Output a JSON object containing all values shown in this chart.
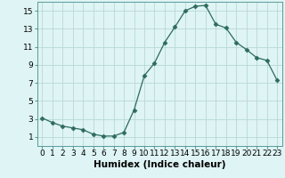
{
  "x": [
    0,
    1,
    2,
    3,
    4,
    5,
    6,
    7,
    8,
    9,
    10,
    11,
    12,
    13,
    14,
    15,
    16,
    17,
    18,
    19,
    20,
    21,
    22,
    23
  ],
  "y": [
    3.1,
    2.6,
    2.2,
    2.0,
    1.8,
    1.3,
    1.1,
    1.1,
    1.5,
    4.0,
    7.8,
    9.2,
    11.5,
    13.2,
    15.0,
    15.5,
    15.6,
    13.5,
    13.1,
    11.5,
    10.7,
    9.8,
    9.5,
    7.3
  ],
  "xlabel": "Humidex (Indice chaleur)",
  "line_color": "#2d6b5e",
  "marker": "D",
  "marker_size": 2.5,
  "bg_color": "#dff4f4",
  "grid_color": "#b8d8d8",
  "xlim": [
    -0.5,
    23.5
  ],
  "ylim": [
    0,
    16
  ],
  "yticks": [
    1,
    3,
    5,
    7,
    9,
    11,
    13,
    15
  ],
  "xticks": [
    0,
    1,
    2,
    3,
    4,
    5,
    6,
    7,
    8,
    9,
    10,
    11,
    12,
    13,
    14,
    15,
    16,
    17,
    18,
    19,
    20,
    21,
    22,
    23
  ],
  "xtick_labels": [
    "0",
    "1",
    "2",
    "3",
    "4",
    "5",
    "6",
    "7",
    "8",
    "9",
    "10",
    "11",
    "12",
    "13",
    "14",
    "15",
    "16",
    "17",
    "18",
    "19",
    "20",
    "21",
    "22",
    "23"
  ],
  "xlabel_fontsize": 7.5,
  "tick_fontsize": 6.5,
  "line_width": 0.9
}
